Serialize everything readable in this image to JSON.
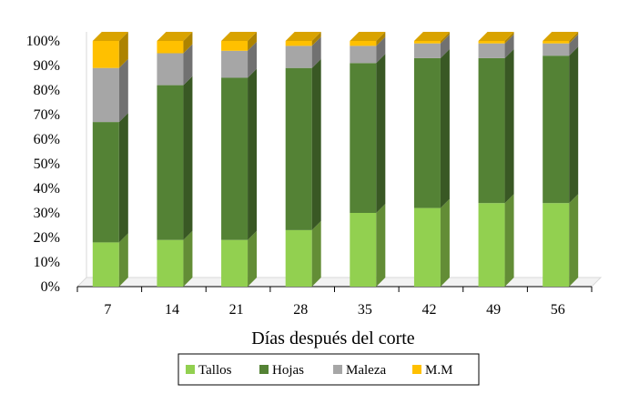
{
  "chart_data": {
    "type": "bar",
    "stacked": true,
    "percent_stacked": true,
    "three_d": true,
    "title": "",
    "xlabel": "Días después del corte",
    "ylabel": "",
    "ylim": [
      0,
      100
    ],
    "y_ticks": [
      "0%",
      "10%",
      "20%",
      "30%",
      "40%",
      "50%",
      "60%",
      "70%",
      "80%",
      "90%",
      "100%"
    ],
    "categories": [
      "7",
      "14",
      "21",
      "28",
      "35",
      "42",
      "49",
      "56"
    ],
    "series": [
      {
        "name": "Tallos",
        "color": "#92d050",
        "values": [
          18,
          19,
          19,
          23,
          30,
          32,
          34,
          34
        ]
      },
      {
        "name": "Hojas",
        "color": "#548235",
        "values": [
          49,
          63,
          66,
          66,
          61,
          61,
          59,
          60
        ]
      },
      {
        "name": "Maleza",
        "color": "#a6a6a6",
        "values": [
          22,
          13,
          11,
          9,
          7,
          6,
          6,
          5
        ]
      },
      {
        "name": "M.M",
        "color": "#ffc000",
        "values": [
          11,
          5,
          4,
          2,
          2,
          1,
          1,
          1
        ]
      }
    ],
    "legend_position": "bottom",
    "grid": false
  }
}
